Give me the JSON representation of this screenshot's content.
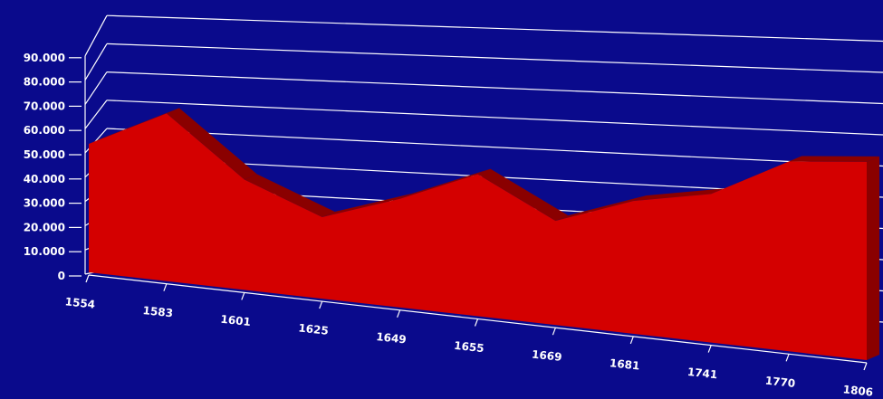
{
  "chart_data": {
    "type": "area",
    "title": "",
    "xlabel": "",
    "ylabel": "",
    "categories": [
      "1554",
      "1583",
      "1601",
      "1625",
      "1649",
      "1655",
      "1669",
      "1681",
      "1741",
      "1770",
      "1806"
    ],
    "series": [
      {
        "values": [
          53000,
          68000,
          44000,
          32000,
          42000,
          54000,
          39000,
          49000,
          54000,
          68000,
          70000
        ]
      }
    ],
    "ylim": [
      0,
      90000
    ],
    "yticks": [
      {
        "value": 0,
        "label": "0"
      },
      {
        "value": 10000,
        "label": "10.000"
      },
      {
        "value": 20000,
        "label": "20.000"
      },
      {
        "value": 30000,
        "label": "30.000"
      },
      {
        "value": 40000,
        "label": "40.000"
      },
      {
        "value": 50000,
        "label": "50.000"
      },
      {
        "value": 60000,
        "label": "60.000"
      },
      {
        "value": 70000,
        "label": "70.000"
      },
      {
        "value": 80000,
        "label": "80.000"
      },
      {
        "value": 90000,
        "label": "90.000"
      }
    ],
    "grid": true,
    "legend": "none",
    "colors": {
      "background": "#0a0a8c",
      "area_fill": "#d40000",
      "area_depth": "#8a0000",
      "gridline": "#ffffff",
      "text": "#ffffff"
    }
  }
}
